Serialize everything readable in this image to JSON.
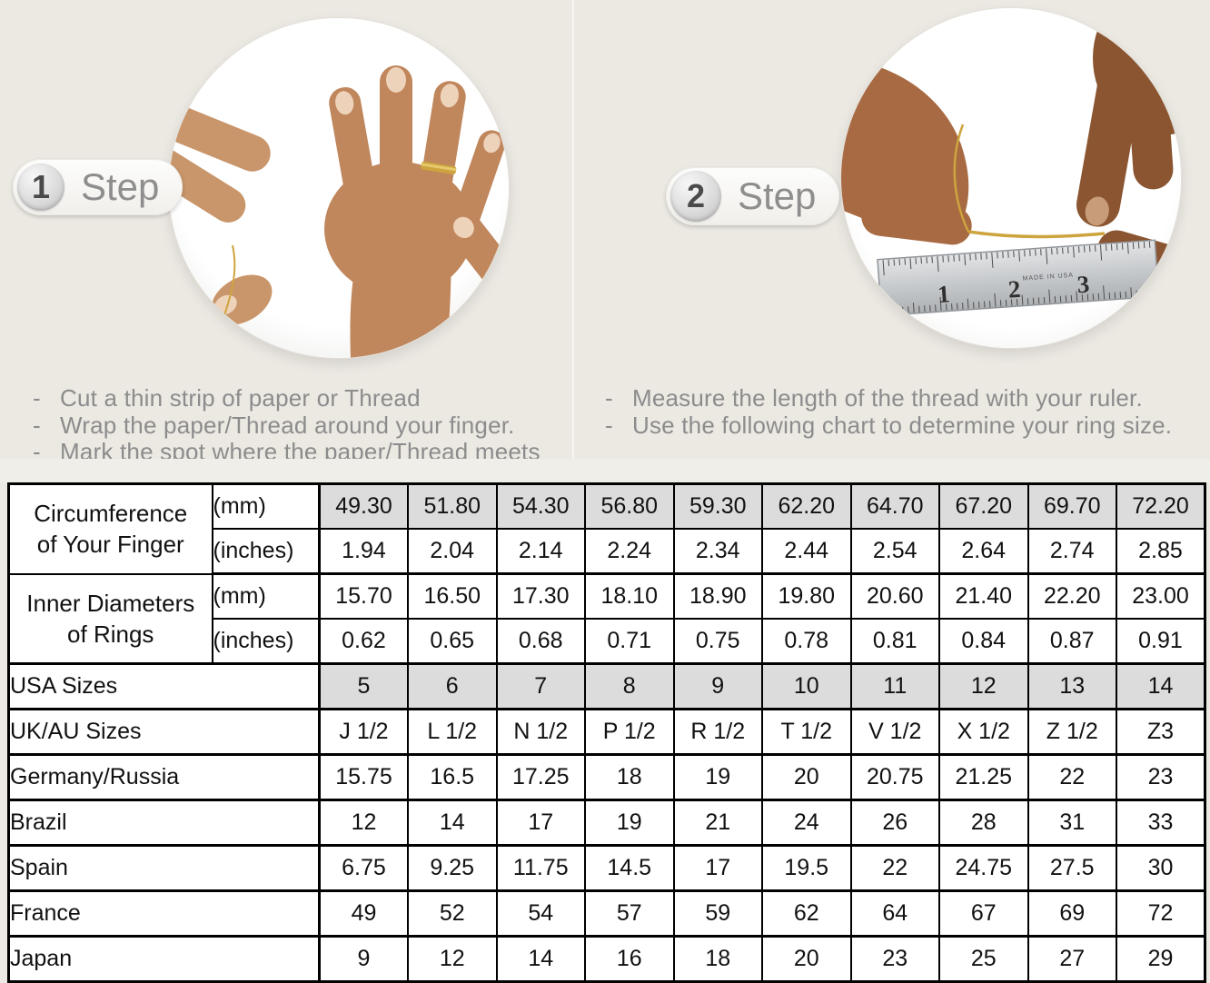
{
  "steps": [
    {
      "number": "1",
      "label": "Step",
      "instructions": [
        "Cut a thin strip of paper or Thread",
        "Wrap the paper/Thread around your finger.",
        "Mark the spot where the paper/Thread meets"
      ]
    },
    {
      "number": "2",
      "label": "Step",
      "instructions": [
        "Measure the length of the thread with your ruler.",
        "Use the following chart to determine your ring size."
      ]
    }
  ],
  "ruler": {
    "numbers": [
      "1",
      "2",
      "3"
    ],
    "small_text": "MADE IN USA"
  },
  "table": {
    "row_groups": [
      {
        "label_lines": [
          "Circumference",
          "of Your Finger"
        ],
        "rows": [
          {
            "unit": "(mm)",
            "shaded": true,
            "values": [
              "49.30",
              "51.80",
              "54.30",
              "56.80",
              "59.30",
              "62.20",
              "64.70",
              "67.20",
              "69.70",
              "72.20"
            ]
          },
          {
            "unit": "(inches)",
            "shaded": false,
            "values": [
              "1.94",
              "2.04",
              "2.14",
              "2.24",
              "2.34",
              "2.44",
              "2.54",
              "2.64",
              "2.74",
              "2.85"
            ]
          }
        ]
      },
      {
        "label_lines": [
          "Inner Diameters",
          "of Rings"
        ],
        "rows": [
          {
            "unit": "(mm)",
            "shaded": false,
            "values": [
              "15.70",
              "16.50",
              "17.30",
              "18.10",
              "18.90",
              "19.80",
              "20.60",
              "21.40",
              "22.20",
              "23.00"
            ]
          },
          {
            "unit": "(inches)",
            "shaded": false,
            "values": [
              "0.62",
              "0.65",
              "0.68",
              "0.71",
              "0.75",
              "0.78",
              "0.81",
              "0.84",
              "0.87",
              "0.91"
            ]
          }
        ]
      }
    ],
    "size_rows": [
      {
        "label": "USA Sizes",
        "shaded": true,
        "values": [
          "5",
          "6",
          "7",
          "8",
          "9",
          "10",
          "11",
          "12",
          "13",
          "14"
        ]
      },
      {
        "label": "UK/AU Sizes",
        "shaded": false,
        "values": [
          "J 1/2",
          "L 1/2",
          "N 1/2",
          "P 1/2",
          "R 1/2",
          "T 1/2",
          "V 1/2",
          "X 1/2",
          "Z 1/2",
          "Z3"
        ]
      },
      {
        "label": "Germany/Russia",
        "shaded": false,
        "values": [
          "15.75",
          "16.5",
          "17.25",
          "18",
          "19",
          "20",
          "20.75",
          "21.25",
          "22",
          "23"
        ]
      },
      {
        "label": "Brazil",
        "shaded": false,
        "values": [
          "12",
          "14",
          "17",
          "19",
          "21",
          "24",
          "26",
          "28",
          "31",
          "33"
        ]
      },
      {
        "label": "Spain",
        "shaded": false,
        "values": [
          "6.75",
          "9.25",
          "11.75",
          "14.5",
          "17",
          "19.5",
          "22",
          "24.75",
          "27.5",
          "30"
        ]
      },
      {
        "label": "France",
        "shaded": false,
        "values": [
          "49",
          "52",
          "54",
          "57",
          "59",
          "62",
          "64",
          "67",
          "69",
          "72"
        ]
      },
      {
        "label": "Japan",
        "shaded": false,
        "values": [
          "9",
          "12",
          "14",
          "16",
          "18",
          "20",
          "23",
          "25",
          "27",
          "29"
        ]
      }
    ]
  },
  "colors": {
    "page_bg": "#ece9e3",
    "band_bg": "#f0eee9",
    "divider": "#f6f5f1",
    "table_border": "#000000",
    "cell_bg": "#ffffff",
    "cell_shaded_bg": "#dcdcdc",
    "text_dark": "#111111",
    "step_label": "#8e8e8e",
    "step_number": "#4a4a4a",
    "instruction_text": "#8c8c8c",
    "gold": "#cda43e"
  }
}
